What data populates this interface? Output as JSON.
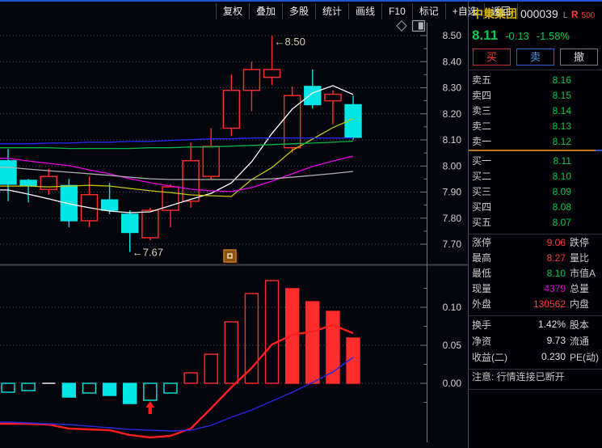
{
  "colors": {
    "accent": "#1a55d4",
    "up": "#ff2d2d",
    "down": "#00e6e6",
    "green": "#00c850",
    "red": "#ff3c3c",
    "magenta": "#d400d4",
    "name_yellow": "#d8b400",
    "orange": "#b87818",
    "blue_btn": "#4a96e8",
    "text": "#ececec",
    "label": "#cdcdcd",
    "grid": "#4f4f55",
    "axis": "#787882",
    "annotation": "#d8cfb0"
  },
  "toolbar": {
    "buttons": [
      "复权",
      "叠加",
      "多股",
      "统计",
      "画线",
      "F10",
      "标记",
      "+自选",
      "返回"
    ]
  },
  "panel": {
    "stock_name": "中集集团",
    "stock_code": "000039",
    "flag_l": "L",
    "flag_r": "R",
    "flag_num": "500",
    "last_price": "8.11",
    "change": "-0.13",
    "change_pct": "-1.58%",
    "buttons": {
      "buy": "买",
      "sell": "卖",
      "cancel": "撤"
    },
    "order_book": {
      "sells": [
        {
          "label": "卖五",
          "price": "8.16"
        },
        {
          "label": "卖四",
          "price": "8.15"
        },
        {
          "label": "卖三",
          "price": "8.14"
        },
        {
          "label": "卖二",
          "price": "8.13"
        },
        {
          "label": "卖一",
          "price": "8.12"
        }
      ],
      "buys": [
        {
          "label": "买一",
          "price": "8.11"
        },
        {
          "label": "买二",
          "price": "8.10"
        },
        {
          "label": "买三",
          "price": "8.09"
        },
        {
          "label": "买四",
          "price": "8.08"
        },
        {
          "label": "买五",
          "price": "8.07"
        }
      ]
    },
    "stats": [
      {
        "label": "涨停",
        "value": "9.06",
        "color": "#ff3c3c",
        "label2": "跌停"
      },
      {
        "label": "最高",
        "value": "8.27",
        "color": "#ff3c3c",
        "label2": "量比"
      },
      {
        "label": "最低",
        "value": "8.10",
        "color": "#00c850",
        "label2": "市值A"
      },
      {
        "label": "现量",
        "value": "4379",
        "color": "#d400d4",
        "label2": "总量"
      },
      {
        "label": "外盘",
        "value": "130562",
        "color": "#ff3c3c",
        "label2": "内盘"
      }
    ],
    "stats2": [
      {
        "label": "换手",
        "value": "1.42%",
        "color": "#e2e2e2",
        "label2": "股本"
      },
      {
        "label": "净资",
        "value": "9.73",
        "color": "#e2e2e2",
        "label2": "流通"
      },
      {
        "label": "收益(二)",
        "value": "0.230",
        "color": "#e2e2e2",
        "label2": "PE(动)"
      }
    ],
    "notice": "注意: 行情连接已断开"
  },
  "chart_data": [
    {
      "type": "candlestick",
      "title": "中集集团 000039 日K",
      "y_ticks": [
        "8.50",
        "8.40",
        "8.30",
        "8.20",
        "8.10",
        "8.00",
        "7.90",
        "7.80",
        "7.70"
      ],
      "ylim": [
        7.6,
        8.55
      ],
      "up_color": "#ff2d2d",
      "down_color": "#00e6e6",
      "candles_ohlc": [
        [
          8.02,
          8.065,
          7.865,
          7.93
        ],
        [
          7.945,
          7.95,
          7.86,
          7.925
        ],
        [
          7.91,
          7.99,
          7.89,
          7.96
        ],
        [
          7.925,
          7.95,
          7.765,
          7.79
        ],
        [
          7.79,
          7.96,
          7.765,
          7.89
        ],
        [
          7.87,
          7.935,
          7.815,
          7.83
        ],
        [
          7.815,
          7.83,
          7.67,
          7.745
        ],
        [
          7.725,
          7.84,
          7.715,
          7.83
        ],
        [
          7.83,
          7.93,
          7.765,
          7.92
        ],
        [
          7.865,
          8.09,
          7.84,
          8.02
        ],
        [
          7.96,
          8.145,
          7.95,
          8.075
        ],
        [
          8.145,
          8.35,
          8.115,
          8.29
        ],
        [
          8.29,
          8.4,
          8.21,
          8.37
        ],
        [
          8.34,
          8.5,
          8.31,
          8.37
        ],
        [
          8.07,
          8.305,
          8.05,
          8.27
        ],
        [
          8.305,
          8.37,
          8.22,
          8.235
        ],
        [
          8.25,
          8.29,
          8.16,
          8.275
        ],
        [
          8.235,
          8.27,
          8.1,
          8.11
        ]
      ],
      "ma_series": [
        {
          "name": "ma-line-white",
          "color": "#ffffff",
          "values": [
            7.908,
            7.892,
            7.874,
            7.855,
            7.84,
            7.827,
            7.821,
            7.824,
            7.848,
            7.872,
            7.895,
            7.935,
            8.016,
            8.125,
            8.218,
            8.28,
            8.308,
            8.274
          ]
        },
        {
          "name": "ma-line-yellow",
          "color": "#c8c800",
          "values": [
            7.923,
            7.923,
            7.92,
            7.923,
            7.926,
            7.923,
            7.914,
            7.905,
            7.898,
            7.889,
            7.886,
            7.883,
            7.948,
            7.994,
            8.06,
            8.103,
            8.147,
            8.181
          ]
        },
        {
          "name": "ma-line-magenta",
          "color": "#e800e8",
          "values": [
            8.029,
            8.019,
            8.01,
            8.001,
            7.985,
            7.97,
            7.951,
            7.936,
            7.923,
            7.911,
            7.905,
            7.902,
            7.917,
            7.942,
            7.97,
            7.998,
            8.019,
            8.038
          ]
        },
        {
          "name": "ma-line-gray",
          "color": "#b4b4b4",
          "values": [
            7.995,
            7.988,
            7.982,
            7.976,
            7.97,
            7.964,
            7.957,
            7.951,
            7.948,
            7.948,
            7.948,
            7.948,
            7.948,
            7.951,
            7.957,
            7.964,
            7.971,
            7.979
          ]
        },
        {
          "name": "ma-line-green",
          "color": "#00b44a",
          "values": [
            8.07,
            8.07,
            8.07,
            8.067,
            8.067,
            8.067,
            8.067,
            8.07,
            8.07,
            8.073,
            8.073,
            8.076,
            8.079,
            8.082,
            8.085,
            8.088,
            8.091,
            8.095
          ]
        },
        {
          "name": "ma-line-blue",
          "color": "#2828ff",
          "values": [
            8.085,
            8.085,
            8.088,
            8.088,
            8.091,
            8.091,
            8.094,
            8.094,
            8.098,
            8.101,
            8.104,
            8.104,
            8.107,
            8.107,
            8.107,
            8.107,
            8.107,
            8.107
          ]
        }
      ],
      "annotations": [
        {
          "text": "←8.50",
          "index": 13,
          "at": "high"
        },
        {
          "text": "←7.67",
          "index": 6,
          "at": "low"
        }
      ]
    },
    {
      "type": "bar",
      "name": "macd-histogram",
      "y_ticks": [
        "0.10",
        "0.05",
        "0.00"
      ],
      "ylim": [
        -0.04,
        0.145
      ],
      "bars": [
        -0.0117,
        -0.0096,
        0.0,
        -0.0181,
        -0.0128,
        -0.016,
        -0.0266,
        -0.0223,
        -0.0128,
        0.0138,
        0.0383,
        0.0809,
        0.1181,
        0.1351,
        0.1245,
        0.1074,
        0.0947,
        0.0596
      ],
      "bar_styles": [
        "hollow",
        "hollow",
        "flat",
        "solid",
        "hollow",
        "solid",
        "solid",
        "hollow",
        "hollow",
        "hollow",
        "hollow",
        "hollow",
        "hollow",
        "hollow",
        "solid",
        "solid",
        "solid",
        "solid"
      ],
      "lines": [
        {
          "name": "dea-line",
          "color": "#ff1e1e",
          "width": 2.4,
          "values": [
            -0.0532,
            -0.0532,
            -0.0543,
            -0.0596,
            -0.0606,
            -0.0617,
            -0.0681,
            -0.0713,
            -0.0691,
            -0.0596,
            -0.033,
            -0.0053,
            0.0202,
            0.0511,
            0.0638,
            0.0681,
            0.0766,
            0.066
          ]
        },
        {
          "name": "dif-line",
          "color": "#2828dc",
          "width": 1.4,
          "values": [
            -0.0511,
            -0.0521,
            -0.0532,
            -0.0543,
            -0.0564,
            -0.0585,
            -0.0606,
            -0.0617,
            -0.0628,
            -0.0617,
            -0.0553,
            -0.0447,
            -0.0351,
            -0.0234,
            -0.0117,
            0.0011,
            0.0149,
            0.034
          ]
        }
      ],
      "marker": {
        "type": "buy-signal-up-arrow",
        "index": 7,
        "color": "#ff1e1e"
      }
    }
  ]
}
